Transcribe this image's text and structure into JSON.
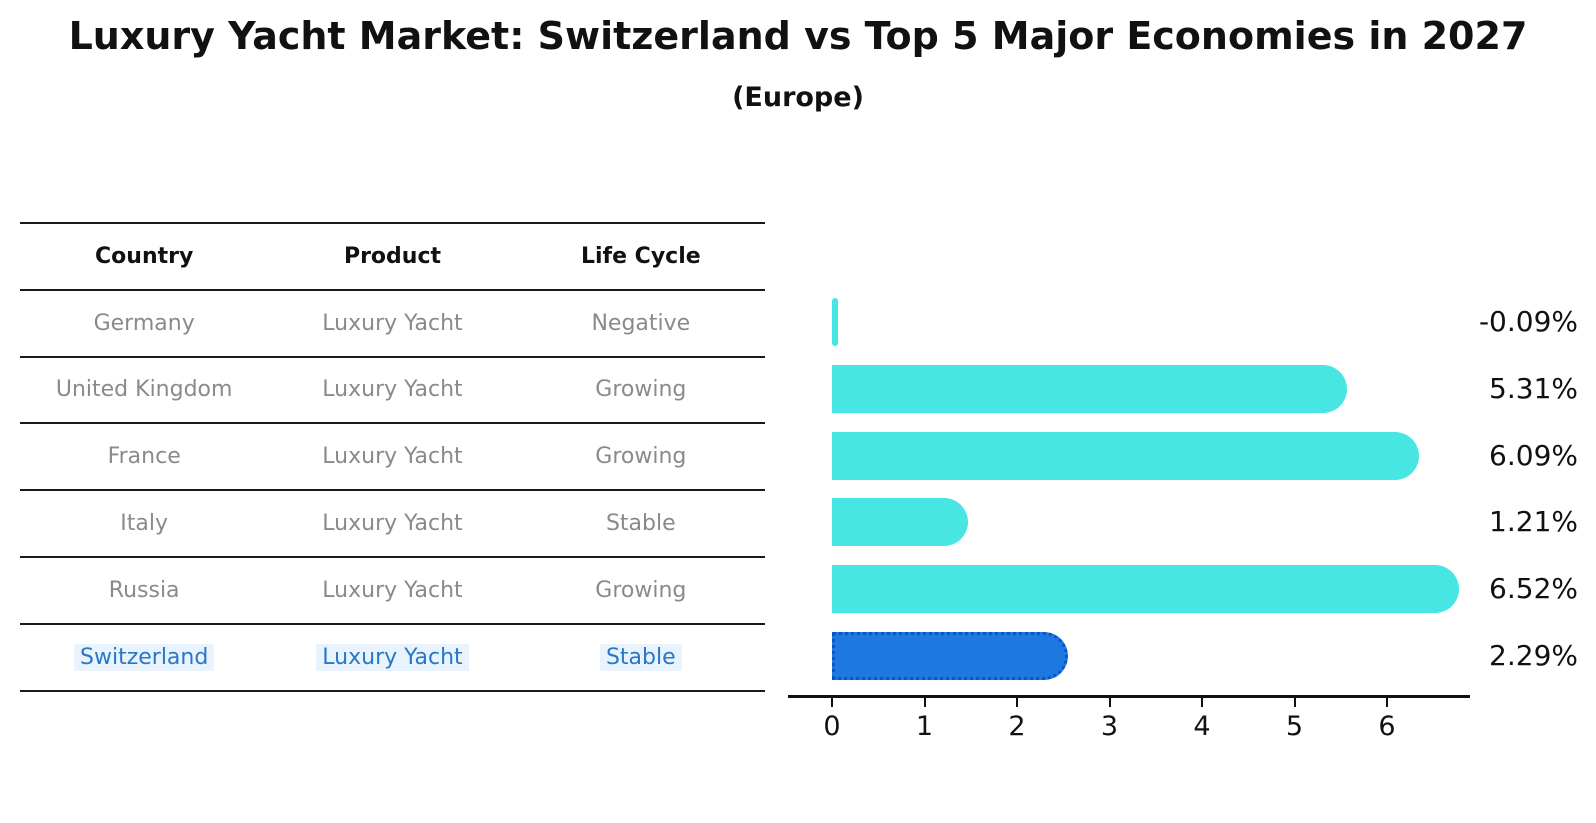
{
  "title": "Luxury Yacht Market: Switzerland vs Top 5 Major Economies in 2027",
  "subtitle": "(Europe)",
  "table": {
    "headers": [
      "Country",
      "Product",
      "Life Cycle"
    ],
    "rows": [
      {
        "country": "Germany",
        "product": "Luxury Yacht",
        "life_cycle": "Negative"
      },
      {
        "country": "United Kingdom",
        "product": "Luxury Yacht",
        "life_cycle": "Growing"
      },
      {
        "country": "France",
        "product": "Luxury Yacht",
        "life_cycle": "Growing"
      },
      {
        "country": "Italy",
        "product": "Luxury Yacht",
        "life_cycle": "Stable"
      },
      {
        "country": "Russia",
        "product": "Luxury Yacht",
        "life_cycle": "Growing"
      },
      {
        "country": "Switzerland",
        "product": "Luxury Yacht",
        "life_cycle": "Stable"
      }
    ],
    "highlight_row_index": 5,
    "text_color": "#8a8a8a",
    "header_color": "#111111",
    "highlight_text_color": "#2878c8"
  },
  "chart_data": {
    "type": "bar",
    "orientation": "horizontal",
    "categories": [
      "Germany",
      "United Kingdom",
      "France",
      "Italy",
      "Russia",
      "Switzerland"
    ],
    "values": [
      -0.09,
      5.31,
      6.09,
      1.21,
      6.52,
      2.29
    ],
    "value_labels": [
      "-0.09%",
      "5.31%",
      "6.09%",
      "1.21%",
      "6.52%",
      "2.29%"
    ],
    "x_ticks": [
      "0",
      "1",
      "2",
      "3",
      "4",
      "5",
      "6"
    ],
    "x_tick_values": [
      0,
      1,
      2,
      3,
      4,
      5,
      6
    ],
    "xlim": [
      0,
      6.9
    ],
    "grid": false,
    "legend": false,
    "bar_color": "#47e6e3",
    "highlight_bar_color": "#1e78e1",
    "highlight_bar_border_color": "#0c56c4",
    "highlight_index": 5,
    "axis_color": "#111111",
    "value_label_color": "#111111"
  }
}
